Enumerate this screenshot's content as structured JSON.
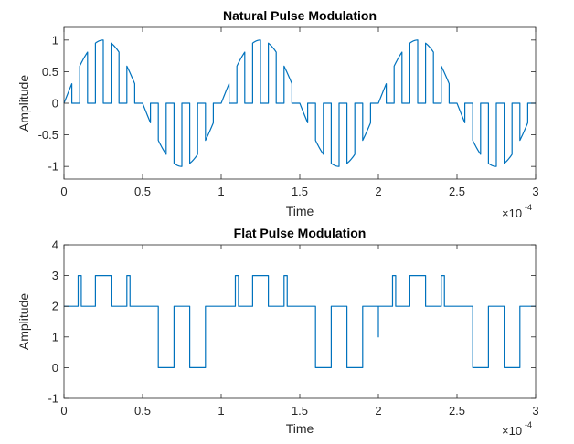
{
  "chart_data": [
    {
      "type": "line",
      "title": "Natural Pulse Modulation",
      "xlabel": "Time",
      "ylabel": "Amplitude",
      "xlim": [
        0,
        0.0003
      ],
      "ylim": [
        -1.2,
        1.2
      ],
      "x_exponent_label": "×10",
      "x_exponent_power": "-4",
      "x_ticks": [
        0,
        5e-05,
        0.0001,
        0.00015,
        0.0002,
        0.00025,
        0.0003
      ],
      "x_tick_labels": [
        "0",
        "0.5",
        "1",
        "1.5",
        "2",
        "2.5",
        "3"
      ],
      "y_ticks": [
        -1,
        -0.5,
        0,
        0.5,
        1
      ],
      "y_tick_labels": [
        "-1",
        "-0.5",
        "0",
        "0.5",
        "1"
      ],
      "line_color": "#0072BD",
      "grid": false,
      "signal": {
        "kind": "natural_pulse",
        "message_frequency_hz": 10000,
        "pulse_period_s": 1e-05,
        "pulse_width_s": 5e-06,
        "x_range": [
          0,
          0.0003
        ]
      }
    },
    {
      "type": "line",
      "title": "Flat Pulse Modulation",
      "xlabel": "Time",
      "ylabel": "Amplitude",
      "xlim": [
        0,
        0.0003
      ],
      "ylim": [
        -1,
        4
      ],
      "x_exponent_label": "×10",
      "x_exponent_power": "-4",
      "x_ticks": [
        0,
        5e-05,
        0.0001,
        0.00015,
        0.0002,
        0.00025,
        0.0003
      ],
      "x_tick_labels": [
        "0",
        "0.5",
        "1",
        "1.5",
        "2",
        "2.5",
        "3"
      ],
      "y_ticks": [
        -1,
        0,
        1,
        2,
        3,
        4
      ],
      "y_tick_labels": [
        "-1",
        "0",
        "1",
        "2",
        "3",
        "4"
      ],
      "line_color": "#0072BD",
      "grid": false,
      "points": [
        [
          0,
          2
        ],
        [
          9e-06,
          2
        ],
        [
          9e-06,
          3
        ],
        [
          1.1e-05,
          3
        ],
        [
          1.1e-05,
          2
        ],
        [
          2e-05,
          2
        ],
        [
          2e-05,
          3
        ],
        [
          3e-05,
          3
        ],
        [
          3e-05,
          2
        ],
        [
          4e-05,
          2
        ],
        [
          4e-05,
          3
        ],
        [
          4.2e-05,
          3
        ],
        [
          4.2e-05,
          2
        ],
        [
          6e-05,
          2
        ],
        [
          6e-05,
          0
        ],
        [
          7e-05,
          0
        ],
        [
          7e-05,
          2
        ],
        [
          8e-05,
          2
        ],
        [
          8e-05,
          0
        ],
        [
          9e-05,
          0
        ],
        [
          9e-05,
          2
        ],
        [
          0.000109,
          2
        ],
        [
          0.000109,
          3
        ],
        [
          0.000111,
          3
        ],
        [
          0.000111,
          2
        ],
        [
          0.00012,
          2
        ],
        [
          0.00012,
          3
        ],
        [
          0.00013,
          3
        ],
        [
          0.00013,
          2
        ],
        [
          0.00014,
          2
        ],
        [
          0.00014,
          3
        ],
        [
          0.000142,
          3
        ],
        [
          0.000142,
          2
        ],
        [
          0.00016,
          2
        ],
        [
          0.00016,
          0
        ],
        [
          0.00017,
          0
        ],
        [
          0.00017,
          2
        ],
        [
          0.00018,
          2
        ],
        [
          0.00018,
          0
        ],
        [
          0.00019,
          0
        ],
        [
          0.00019,
          2
        ],
        [
          0.0002,
          2
        ],
        [
          0.0002,
          1
        ],
        [
          0.0002,
          2
        ],
        [
          0.000209,
          2
        ],
        [
          0.000209,
          3
        ],
        [
          0.000211,
          3
        ],
        [
          0.000211,
          2
        ],
        [
          0.00022,
          2
        ],
        [
          0.00022,
          3
        ],
        [
          0.00023,
          3
        ],
        [
          0.00023,
          2
        ],
        [
          0.00024,
          2
        ],
        [
          0.00024,
          3
        ],
        [
          0.000242,
          3
        ],
        [
          0.000242,
          2
        ],
        [
          0.00026,
          2
        ],
        [
          0.00026,
          0
        ],
        [
          0.00027,
          0
        ],
        [
          0.00027,
          2
        ],
        [
          0.00028,
          2
        ],
        [
          0.00028,
          0
        ],
        [
          0.00029,
          0
        ],
        [
          0.00029,
          2
        ],
        [
          0.0003,
          2
        ]
      ]
    }
  ]
}
